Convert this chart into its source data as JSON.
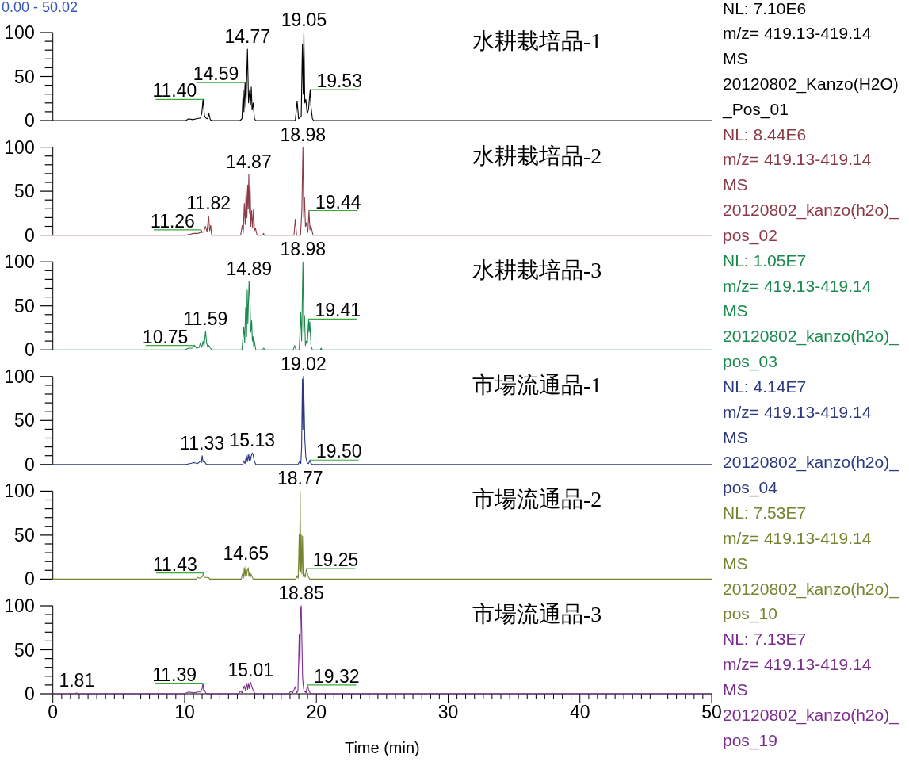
{
  "chart_data": [
    {
      "type": "line",
      "title": "水耕栽培品-1",
      "subtitle": "0.00 - 50.02",
      "color": "#000000",
      "xlim": [
        0,
        50
      ],
      "ylim": [
        0,
        100
      ],
      "yticks": [
        0,
        {
          "value": 10,
          "label": null
        },
        {
          "value": 20,
          "label": null
        },
        {
          "value": 30,
          "label": null
        },
        {
          "value": 40,
          "label": null
        },
        50,
        {
          "value": 60,
          "label": null
        },
        {
          "value": 70,
          "label": null
        },
        {
          "value": 80,
          "label": null
        },
        {
          "value": 90,
          "label": null
        },
        100
      ],
      "tick_labels": "y",
      "x": [
        0,
        10.1,
        10.3,
        10.6,
        10.9,
        11.2,
        11.3,
        11.4,
        11.5,
        11.6,
        11.75,
        11.84,
        11.95,
        12.1,
        14.2,
        14.35,
        14.45,
        14.5,
        14.59,
        14.65,
        14.77,
        14.85,
        14.94,
        15.0,
        15.06,
        15.12,
        15.2,
        15.3,
        15.4,
        18.4,
        18.54,
        18.65,
        18.85,
        18.94,
        19.0,
        19.05,
        19.12,
        19.2,
        19.3,
        19.4,
        19.53,
        19.59,
        19.7,
        19.8,
        50
      ],
      "values": [
        0,
        0,
        2,
        1,
        2,
        3,
        8,
        24,
        6,
        3,
        2,
        8,
        1,
        0,
        0,
        2,
        34,
        10,
        43,
        15,
        81,
        20,
        35,
        18,
        38,
        12,
        20,
        2,
        0,
        0,
        22,
        2,
        5,
        87,
        30,
        100,
        20,
        24,
        8,
        12,
        35,
        16,
        2,
        0,
        0
      ],
      "annotations": [
        {
          "text": "11.40",
          "x": 11.4,
          "y": 24
        },
        {
          "text": "14.59",
          "x": 14.59,
          "y": 43
        },
        {
          "text": "14.77",
          "x": 14.77,
          "y": 81
        },
        {
          "text": "19.05",
          "x": 19.05,
          "y": 100
        },
        {
          "text": "19.53",
          "x": 19.53,
          "y": 35
        },
        "NL: 7.10E6",
        "m/z= 419.13-419.14",
        "MS",
        "20120802_Kanzo(H2O)_Pos_01"
      ]
    },
    {
      "type": "line",
      "title": "水耕栽培品-2",
      "color": "#8b3a46",
      "xlim": [
        0,
        50
      ],
      "ylim": [
        0,
        100
      ],
      "yticks": [
        0,
        {
          "value": 10,
          "label": null
        },
        {
          "value": 20,
          "label": null
        },
        {
          "value": 30,
          "label": null
        },
        {
          "value": 40,
          "label": null
        },
        50,
        {
          "value": 60,
          "label": null
        },
        {
          "value": 70,
          "label": null
        },
        {
          "value": 80,
          "label": null
        },
        {
          "value": 90,
          "label": null
        },
        100
      ],
      "tick_labels": "y",
      "x": [
        0,
        10.1,
        10.4,
        10.7,
        11.0,
        11.2,
        11.26,
        11.32,
        11.45,
        11.58,
        11.7,
        11.82,
        11.9,
        11.98,
        12.05,
        14.25,
        14.37,
        14.45,
        14.53,
        14.6,
        14.67,
        14.73,
        14.79,
        14.83,
        14.87,
        14.92,
        14.97,
        15.03,
        15.09,
        15.16,
        15.23,
        15.3,
        15.37,
        15.5,
        15.93,
        15.99,
        16.05,
        18.3,
        18.4,
        18.5,
        18.8,
        18.9,
        18.98,
        19.04,
        19.1,
        19.17,
        19.24,
        19.35,
        19.44,
        19.51,
        19.58,
        19.75,
        50
      ],
      "values": [
        0,
        0,
        1,
        2,
        2,
        3,
        6,
        3,
        4,
        10,
        4,
        22,
        5,
        11,
        0,
        0,
        11,
        3,
        36,
        12,
        54,
        20,
        57,
        30,
        69,
        25,
        56,
        10,
        28,
        8,
        30,
        5,
        8,
        0,
        0,
        2,
        0,
        0,
        18,
        0,
        0,
        30,
        100,
        20,
        43,
        10,
        14,
        3,
        28,
        6,
        11,
        0,
        0
      ],
      "annotations": [
        {
          "text": "11.26",
          "x": 11.26,
          "y": 6
        },
        {
          "text": "11.82",
          "x": 11.82,
          "y": 22
        },
        {
          "text": "14.87",
          "x": 14.87,
          "y": 69
        },
        {
          "text": "18.98",
          "x": 18.98,
          "y": 100
        },
        {
          "text": "19.44",
          "x": 19.44,
          "y": 28
        },
        "NL: 8.44E6",
        "m/z= 419.13-419.14",
        "MS",
        "20120802_kanzo(h2o)_pos_02"
      ]
    },
    {
      "type": "line",
      "title": "水耕栽培品-3",
      "color": "#1a8a4e",
      "xlim": [
        0,
        50
      ],
      "ylim": [
        0,
        100
      ],
      "yticks": [
        0,
        {
          "value": 10,
          "label": null
        },
        {
          "value": 20,
          "label": null
        },
        {
          "value": 30,
          "label": null
        },
        {
          "value": 40,
          "label": null
        },
        50,
        {
          "value": 60,
          "label": null
        },
        {
          "value": 70,
          "label": null
        },
        {
          "value": 80,
          "label": null
        },
        {
          "value": 90,
          "label": null
        },
        100
      ],
      "tick_labels": "y",
      "x": [
        0,
        10.0,
        10.3,
        10.6,
        10.75,
        10.9,
        11.1,
        11.2,
        11.3,
        11.4,
        11.47,
        11.59,
        11.67,
        11.76,
        11.85,
        11.95,
        12.05,
        14.35,
        14.49,
        14.56,
        14.63,
        14.7,
        14.75,
        14.8,
        14.89,
        14.95,
        15.02,
        15.09,
        15.14,
        15.19,
        15.24,
        15.29,
        15.4,
        15.9,
        16.0,
        16.1,
        18.25,
        18.35,
        18.45,
        18.7,
        18.81,
        18.88,
        18.98,
        19.04,
        19.1,
        19.17,
        19.24,
        19.32,
        19.41,
        19.45,
        19.5,
        19.6,
        19.7,
        20.3,
        20.36,
        20.42,
        50
      ],
      "values": [
        0,
        0,
        2,
        2,
        5,
        2,
        3,
        8,
        3,
        10,
        4,
        21,
        8,
        3,
        5,
        2,
        0,
        0,
        26,
        8,
        48,
        15,
        68,
        30,
        78,
        60,
        20,
        33,
        10,
        15,
        4,
        10,
        0,
        0,
        2,
        0,
        0,
        5,
        0,
        0,
        42,
        10,
        100,
        20,
        39,
        5,
        10,
        8,
        35,
        20,
        32,
        4,
        0,
        0,
        2,
        0,
        0
      ],
      "annotations": [
        {
          "text": "10.75",
          "x": 10.75,
          "y": 5
        },
        {
          "text": "11.59",
          "x": 11.59,
          "y": 21
        },
        {
          "text": "14.89",
          "x": 14.89,
          "y": 78
        },
        {
          "text": "18.98",
          "x": 18.98,
          "y": 100
        },
        {
          "text": "19.41",
          "x": 19.41,
          "y": 35
        },
        "NL: 1.05E7",
        "m/z= 419.13-419.14",
        "MS",
        "20120802_kanzo(h2o)_pos_03"
      ]
    },
    {
      "type": "line",
      "title": "市場流通品-1",
      "color": "#2b3a80",
      "xlim": [
        0,
        50
      ],
      "ylim": [
        0,
        100
      ],
      "yticks": [
        0,
        {
          "value": 10,
          "label": null
        },
        {
          "value": 20,
          "label": null
        },
        {
          "value": 30,
          "label": null
        },
        {
          "value": 40,
          "label": null
        },
        50,
        {
          "value": 60,
          "label": null
        },
        {
          "value": 70,
          "label": null
        },
        {
          "value": 80,
          "label": null
        },
        {
          "value": 90,
          "label": null
        },
        100
      ],
      "tick_labels": "y",
      "x": [
        0,
        10.1,
        10.4,
        10.7,
        11.0,
        11.2,
        11.27,
        11.33,
        11.4,
        11.5,
        11.6,
        11.7,
        14.4,
        14.49,
        14.58,
        14.69,
        14.76,
        14.83,
        14.9,
        14.95,
        15.0,
        15.06,
        15.13,
        15.2,
        15.29,
        15.4,
        18.6,
        18.75,
        18.82,
        18.88,
        18.94,
        18.98,
        19.02,
        19.08,
        19.12,
        19.2,
        19.3,
        19.42,
        19.5,
        19.6,
        19.7,
        50
      ],
      "values": [
        0,
        0,
        1,
        2,
        1,
        4,
        2,
        10,
        3,
        4,
        1,
        0,
        0,
        4,
        1,
        10,
        3,
        11,
        4,
        12,
        5,
        10,
        13,
        11,
        4,
        0,
        0,
        4,
        1,
        20,
        97,
        40,
        100,
        60,
        29,
        8,
        2,
        1,
        5,
        1,
        0,
        0
      ],
      "annotations": [
        {
          "text": "11.33",
          "x": 11.33,
          "y": 10
        },
        {
          "text": "15.13",
          "x": 15.13,
          "y": 13
        },
        {
          "text": "19.02",
          "x": 19.02,
          "y": 100
        },
        {
          "text": "19.50",
          "x": 19.5,
          "y": 5
        },
        "NL: 4.14E7",
        "m/z= 419.13-419.14",
        "MS",
        "20120802_kanzo(h2o)_pos_04"
      ]
    },
    {
      "type": "line",
      "title": "市場流通品-2",
      "color": "#76842f",
      "xlim": [
        0,
        50
      ],
      "ylim": [
        0,
        100
      ],
      "yticks": [
        0,
        {
          "value": 10,
          "label": null
        },
        {
          "value": 20,
          "label": null
        },
        {
          "value": 30,
          "label": null
        },
        {
          "value": 40,
          "label": null
        },
        50,
        {
          "value": 60,
          "label": null
        },
        {
          "value": 70,
          "label": null
        },
        {
          "value": 80,
          "label": null
        },
        {
          "value": 90,
          "label": null
        },
        100
      ],
      "tick_labels": "y",
      "x": [
        0,
        10.9,
        11.0,
        11.15,
        11.25,
        11.35,
        11.43,
        11.5,
        11.65,
        11.8,
        11.9,
        14.3,
        14.39,
        14.46,
        14.53,
        14.58,
        14.65,
        14.7,
        14.76,
        14.83,
        14.88,
        14.93,
        14.98,
        15.03,
        15.2,
        18.45,
        18.55,
        18.62,
        18.7,
        18.73,
        18.77,
        18.81,
        18.85,
        18.9,
        18.95,
        19.0,
        19.05,
        19.15,
        19.25,
        19.35,
        19.5,
        50
      ],
      "values": [
        0,
        0,
        2,
        1,
        2,
        3,
        7,
        2,
        2,
        2,
        0,
        0,
        6,
        1,
        13,
        3,
        15,
        4,
        10,
        13,
        3,
        7,
        2,
        6,
        0,
        0,
        4,
        1,
        51,
        10,
        100,
        8,
        50,
        6,
        49,
        3,
        7,
        2,
        12,
        4,
        0,
        0
      ],
      "annotations": [
        {
          "text": "11.43",
          "x": 11.43,
          "y": 7
        },
        {
          "text": "14.65",
          "x": 14.65,
          "y": 15
        },
        {
          "text": "18.77",
          "x": 18.77,
          "y": 100
        },
        {
          "text": "19.25",
          "x": 19.25,
          "y": 12
        },
        "NL: 7.53E7",
        "m/z= 419.13-419.14",
        "MS",
        "20120802_kanzo(h2o)_pos_10"
      ]
    },
    {
      "type": "line",
      "title": "市場流通品-3",
      "xlabel": "Time (min)",
      "color": "#7b2d8e",
      "xlim": [
        0,
        50
      ],
      "ylim": [
        0,
        100
      ],
      "yticks": [
        0,
        {
          "value": 10,
          "label": null
        },
        {
          "value": 20,
          "label": null
        },
        {
          "value": 30,
          "label": null
        },
        {
          "value": 40,
          "label": null
        },
        50,
        {
          "value": 60,
          "label": null
        },
        {
          "value": 70,
          "label": null
        },
        {
          "value": 80,
          "label": null
        },
        {
          "value": 90,
          "label": null
        },
        100
      ],
      "xticks": [
        0,
        {
          "value": 0.67,
          "label": null
        },
        {
          "value": 1.33,
          "label": null
        },
        {
          "value": 2,
          "label": null
        },
        {
          "value": 2.67,
          "label": null
        },
        {
          "value": 3.33,
          "label": null
        },
        {
          "value": 4,
          "label": null
        },
        {
          "value": 4.67,
          "label": null
        },
        {
          "value": 5.33,
          "label": null
        },
        {
          "value": 6,
          "label": null
        },
        {
          "value": 6.67,
          "label": null
        },
        {
          "value": 7.33,
          "label": null
        },
        {
          "value": 8,
          "label": null
        },
        {
          "value": 8.67,
          "label": null
        },
        {
          "value": 9.33,
          "label": null
        },
        10,
        {
          "value": 10.67,
          "label": null
        },
        {
          "value": 11.33,
          "label": null
        },
        {
          "value": 12,
          "label": null
        },
        {
          "value": 12.67,
          "label": null
        },
        {
          "value": 13.33,
          "label": null
        },
        {
          "value": 14,
          "label": null
        },
        {
          "value": 14.67,
          "label": null
        },
        {
          "value": 15.33,
          "label": null
        },
        {
          "value": 16,
          "label": null
        },
        {
          "value": 16.67,
          "label": null
        },
        {
          "value": 17.33,
          "label": null
        },
        {
          "value": 18,
          "label": null
        },
        {
          "value": 18.67,
          "label": null
        },
        {
          "value": 19.33,
          "label": null
        },
        20,
        {
          "value": 20.67,
          "label": null
        },
        {
          "value": 21.33,
          "label": null
        },
        {
          "value": 22,
          "label": null
        },
        {
          "value": 22.67,
          "label": null
        },
        {
          "value": 23.33,
          "label": null
        },
        {
          "value": 24,
          "label": null
        },
        {
          "value": 24.67,
          "label": null
        },
        {
          "value": 25.33,
          "label": null
        },
        {
          "value": 26,
          "label": null
        },
        {
          "value": 26.67,
          "label": null
        },
        {
          "value": 27.33,
          "label": null
        },
        {
          "value": 28,
          "label": null
        },
        {
          "value": 28.67,
          "label": null
        },
        {
          "value": 29.33,
          "label": null
        },
        30,
        {
          "value": 30.67,
          "label": null
        },
        {
          "value": 31.33,
          "label": null
        },
        {
          "value": 32,
          "label": null
        },
        {
          "value": 32.67,
          "label": null
        },
        {
          "value": 33.33,
          "label": null
        },
        {
          "value": 34,
          "label": null
        },
        {
          "value": 34.67,
          "label": null
        },
        {
          "value": 35.33,
          "label": null
        },
        {
          "value": 36,
          "label": null
        },
        {
          "value": 36.67,
          "label": null
        },
        {
          "value": 37.33,
          "label": null
        },
        {
          "value": 38,
          "label": null
        },
        {
          "value": 38.67,
          "label": null
        },
        {
          "value": 39.33,
          "label": null
        },
        40,
        {
          "value": 40.67,
          "label": null
        },
        {
          "value": 41.33,
          "label": null
        },
        {
          "value": 42,
          "label": null
        },
        {
          "value": 42.67,
          "label": null
        },
        {
          "value": 43.33,
          "label": null
        },
        {
          "value": 44,
          "label": null
        },
        {
          "value": 44.67,
          "label": null
        },
        {
          "value": 45.33,
          "label": null
        },
        {
          "value": 46,
          "label": null
        },
        {
          "value": 46.67,
          "label": null
        },
        {
          "value": 47.33,
          "label": null
        },
        {
          "value": 48,
          "label": null
        },
        {
          "value": 48.67,
          "label": null
        },
        {
          "value": 49.33,
          "label": null
        },
        50
      ],
      "x": [
        0,
        1.7,
        1.81,
        1.9,
        10.0,
        10.3,
        10.7,
        11.0,
        11.2,
        11.33,
        11.39,
        11.45,
        11.53,
        11.6,
        11.73,
        14.1,
        14.23,
        14.35,
        14.53,
        14.62,
        14.7,
        14.78,
        14.84,
        14.9,
        14.94,
        15.01,
        15.08,
        15.18,
        15.34,
        17.95,
        18.04,
        18.2,
        18.4,
        18.5,
        18.6,
        18.7,
        18.75,
        18.8,
        18.85,
        18.9,
        18.95,
        19.0,
        19.07,
        19.14,
        19.22,
        19.32,
        19.4,
        19.55,
        50
      ],
      "values": [
        0,
        0,
        1,
        0,
        0,
        2,
        1,
        2,
        2,
        6,
        12,
        3,
        4,
        1,
        0,
        0,
        3,
        1,
        9,
        4,
        12,
        5,
        12,
        6,
        10,
        13,
        9,
        5,
        0,
        0,
        3,
        1,
        8,
        1,
        3,
        68,
        30,
        95,
        100,
        62,
        20,
        10,
        2,
        3,
        1,
        10,
        5,
        0,
        0
      ],
      "annotations": [
        {
          "text": "1.81",
          "x": 1.81,
          "y": 1
        },
        {
          "text": "11.39",
          "x": 11.39,
          "y": 12
        },
        {
          "text": "15.01",
          "x": 15.01,
          "y": 13
        },
        {
          "text": "18.85",
          "x": 18.85,
          "y": 100
        },
        {
          "text": "19.32",
          "x": 19.32,
          "y": 10
        },
        "NL: 7.13E7",
        "m/z= 419.13-419.14",
        "MS",
        "20120802_kanzo(h2o)_pos_19"
      ]
    }
  ]
}
